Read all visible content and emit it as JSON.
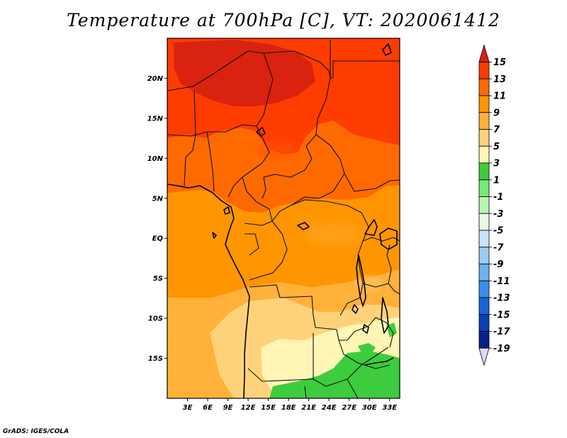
{
  "title": "Temperature at 700hPa [C], VT: 2020061412",
  "credit": "GrADS: IGES/COLA",
  "map": {
    "lon_range": [
      0,
      34.5
    ],
    "lat_range": [
      -20,
      25
    ],
    "lat_ticks": [
      {
        "value": 20,
        "label": "20N"
      },
      {
        "value": 15,
        "label": "15N"
      },
      {
        "value": 10,
        "label": "10N"
      },
      {
        "value": 5,
        "label": "5N"
      },
      {
        "value": 0,
        "label": "EQ"
      },
      {
        "value": -5,
        "label": "5S"
      },
      {
        "value": -10,
        "label": "10S"
      },
      {
        "value": -15,
        "label": "15S"
      }
    ],
    "lon_ticks": [
      {
        "value": 3,
        "label": "3E"
      },
      {
        "value": 6,
        "label": "6E"
      },
      {
        "value": 9,
        "label": "9E"
      },
      {
        "value": 12,
        "label": "12E"
      },
      {
        "value": 15,
        "label": "15E"
      },
      {
        "value": 18,
        "label": "18E"
      },
      {
        "value": 21,
        "label": "21E"
      },
      {
        "value": 24,
        "label": "24E"
      },
      {
        "value": 27,
        "label": "27E"
      },
      {
        "value": 30,
        "label": "30E"
      },
      {
        "value": 33,
        "label": "33E"
      }
    ]
  },
  "colorbar": {
    "labels": [
      "15",
      "13",
      "11",
      "9",
      "7",
      "5",
      "3",
      "1",
      "-1",
      "-3",
      "-5",
      "-7",
      "-9",
      "-11",
      "-13",
      "-15",
      "-17",
      "-19"
    ],
    "bins": [
      {
        "range": ">15",
        "color": "#d9220f"
      },
      {
        "range": "13-15",
        "color": "#ff3c00"
      },
      {
        "range": "11-13",
        "color": "#ff6a00"
      },
      {
        "range": "9-11",
        "color": "#ff9500"
      },
      {
        "range": "7-9",
        "color": "#ffb13a"
      },
      {
        "range": "5-7",
        "color": "#ffd27a"
      },
      {
        "range": "3-5",
        "color": "#fff5b5"
      },
      {
        "range": "1-3",
        "color": "#3dcc3d"
      },
      {
        "range": "-1-1",
        "color": "#78e878"
      },
      {
        "range": "-3--1",
        "color": "#b6f5b0"
      },
      {
        "range": "-5--3",
        "color": "#e6fae6"
      },
      {
        "range": "-7--5",
        "color": "#c6e4fb"
      },
      {
        "range": "-9--7",
        "color": "#9dcbf7"
      },
      {
        "range": "-11--9",
        "color": "#6fb0f2"
      },
      {
        "range": "-13--11",
        "color": "#3c8cec"
      },
      {
        "range": "-15--13",
        "color": "#1a64d8"
      },
      {
        "range": "-17--15",
        "color": "#0b40b8"
      },
      {
        "range": "-19--17",
        "color": "#07208a"
      },
      {
        "range": "<-19",
        "color": "#dcdcf5"
      }
    ]
  }
}
